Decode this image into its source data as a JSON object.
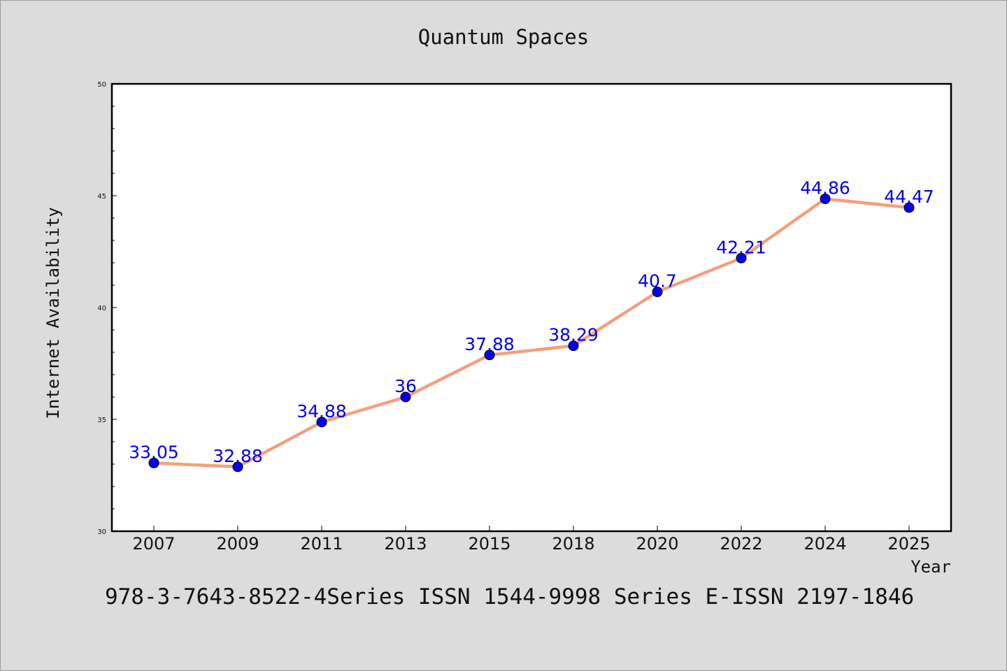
{
  "chart_data": {
    "type": "line",
    "title": "Quantum Spaces",
    "xlabel": "Year",
    "ylabel": "Internet Availability",
    "categories": [
      "2007",
      "2009",
      "2011",
      "2013",
      "2015",
      "2018",
      "2020",
      "2022",
      "2024",
      "2025"
    ],
    "series": [
      {
        "values": [
          33.05,
          32.88,
          34.88,
          36,
          37.88,
          38.29,
          40.7,
          42.21,
          44.86,
          44.47
        ],
        "labels": [
          "33.05",
          "32.88",
          "34.88",
          "36",
          "37.88",
          "38.29",
          "40.7",
          "42.21",
          "44.86",
          "44.47"
        ]
      }
    ],
    "ylim": [
      30,
      50
    ],
    "yticks": [
      30,
      35,
      40,
      45,
      50
    ],
    "grid": false,
    "line_color": "#f4a07c",
    "marker_color": "#0000ee",
    "label_color": "#0000ee"
  },
  "footer": {
    "text": "978-3-7643-8522-4Series ISSN 1544-9998 Series E-ISSN 2197-1846"
  }
}
